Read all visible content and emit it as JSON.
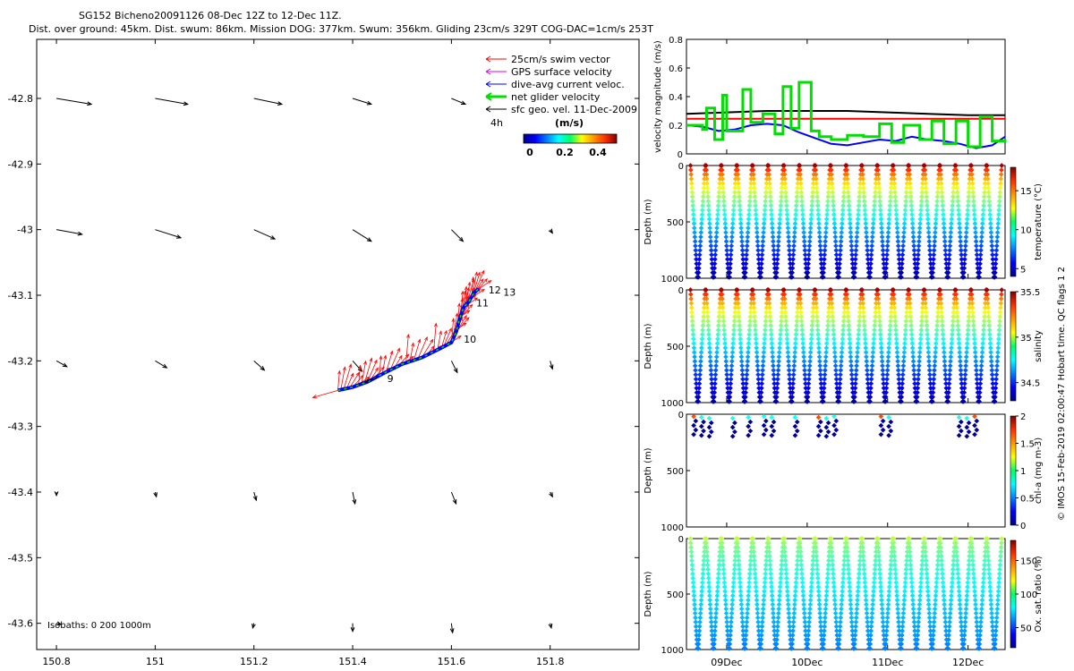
{
  "title_line1": "SG152 Bicheno20091126 08-Dec 12Z to 12-Dec 11Z.",
  "title_line2": "Dist. over ground: 45km. Dist. swum: 86km. Mission DOG: 377km. Swum: 356km. Gliding 23cm/s 329T COG-DAC=1cm/s 253T",
  "side_note": "© IMOS 15-Feb-2019 02:00:47 Hobart time. QC flags 1  2",
  "colors": {
    "swim": "#ff0000",
    "gps": "#e000e0",
    "dac": "#0000ff",
    "net": "#00e000",
    "sfc": "#000000",
    "axis": "#000000"
  },
  "legend": {
    "items": [
      {
        "label": "25cm/s swim vector",
        "color": "#ff0000"
      },
      {
        "label": "GPS surface velocity",
        "color": "#e000e0"
      },
      {
        "label": "dive-avg current veloc.",
        "color": "#0000ff"
      },
      {
        "label": "net glider velocity",
        "color": "#00e000"
      },
      {
        "label": "sfc geo. vel. 11-Dec-2009",
        "color": "#000000"
      }
    ],
    "time_label": "4h",
    "colorbar_title": "(m/s)",
    "colorbar_ticks": [
      "0",
      "0.2",
      "0.4"
    ],
    "isobaths": "Isobaths: 0   200  1000m"
  },
  "chart_data": [
    {
      "type": "scatter",
      "name": "map",
      "xlabel": "",
      "ylabel": "",
      "xlim": [
        150.76,
        151.98
      ],
      "ylim": [
        -43.64,
        -42.71
      ],
      "xticks": [
        "150.8",
        "151",
        "151.2",
        "151.4",
        "151.6",
        "151.8"
      ],
      "yticks": [
        "-42.8",
        "-42.9",
        "-43",
        "-43.1",
        "-43.2",
        "-43.3",
        "-43.4",
        "-43.5",
        "-43.6"
      ],
      "track": [
        [
          151.37,
          -43.245
        ],
        [
          151.4,
          -43.24
        ],
        [
          151.43,
          -43.232
        ],
        [
          151.46,
          -43.22
        ],
        [
          151.5,
          -43.205
        ],
        [
          151.54,
          -43.195
        ],
        [
          151.58,
          -43.18
        ],
        [
          151.6,
          -43.172
        ],
        [
          151.61,
          -43.155
        ],
        [
          151.615,
          -43.14
        ],
        [
          151.62,
          -43.128
        ],
        [
          151.625,
          -43.118
        ],
        [
          151.635,
          -43.11
        ],
        [
          151.645,
          -43.097
        ],
        [
          151.655,
          -43.09
        ]
      ],
      "day_labels": [
        {
          "text": "9",
          "lon": 151.47,
          "lat": -43.232
        },
        {
          "text": "10",
          "lon": 151.625,
          "lat": -43.172
        },
        {
          "text": "11",
          "lon": 151.65,
          "lat": -43.117
        },
        {
          "text": "12",
          "lon": 151.675,
          "lat": -43.097
        },
        {
          "text": "13",
          "lon": 151.705,
          "lat": -43.101
        }
      ],
      "sfc_vectors": [
        {
          "lon": 150.8,
          "lat": -42.8,
          "u": 0.3,
          "v": -0.05
        },
        {
          "lon": 151.0,
          "lat": -42.8,
          "u": 0.28,
          "v": -0.05
        },
        {
          "lon": 151.2,
          "lat": -42.8,
          "u": 0.24,
          "v": -0.05
        },
        {
          "lon": 151.4,
          "lat": -42.8,
          "u": 0.16,
          "v": -0.05
        },
        {
          "lon": 151.6,
          "lat": -42.8,
          "u": 0.12,
          "v": -0.05
        },
        {
          "lon": 150.8,
          "lat": -43.0,
          "u": 0.22,
          "v": -0.04
        },
        {
          "lon": 151.0,
          "lat": -43.0,
          "u": 0.22,
          "v": -0.07
        },
        {
          "lon": 151.2,
          "lat": -43.0,
          "u": 0.18,
          "v": -0.08
        },
        {
          "lon": 151.4,
          "lat": -43.0,
          "u": 0.16,
          "v": -0.1
        },
        {
          "lon": 151.6,
          "lat": -43.0,
          "u": 0.1,
          "v": -0.1
        },
        {
          "lon": 151.8,
          "lat": -43.0,
          "u": 0.02,
          "v": -0.03
        },
        {
          "lon": 150.8,
          "lat": -43.2,
          "u": 0.09,
          "v": -0.05
        },
        {
          "lon": 151.0,
          "lat": -43.2,
          "u": 0.1,
          "v": -0.06
        },
        {
          "lon": 151.2,
          "lat": -43.2,
          "u": 0.09,
          "v": -0.08
        },
        {
          "lon": 151.4,
          "lat": -43.2,
          "u": 0.08,
          "v": -0.09
        },
        {
          "lon": 151.6,
          "lat": -43.2,
          "u": 0.05,
          "v": -0.1
        },
        {
          "lon": 151.8,
          "lat": -43.2,
          "u": 0.02,
          "v": -0.07
        },
        {
          "lon": 150.8,
          "lat": -43.4,
          "u": 0.0,
          "v": -0.03
        },
        {
          "lon": 151.0,
          "lat": -43.4,
          "u": 0.01,
          "v": -0.04
        },
        {
          "lon": 151.2,
          "lat": -43.4,
          "u": 0.02,
          "v": -0.07
        },
        {
          "lon": 151.4,
          "lat": -43.4,
          "u": 0.02,
          "v": -0.1
        },
        {
          "lon": 151.6,
          "lat": -43.4,
          "u": 0.04,
          "v": -0.1
        },
        {
          "lon": 151.8,
          "lat": -43.4,
          "u": 0.02,
          "v": -0.04
        },
        {
          "lon": 150.8,
          "lat": -43.6,
          "u": 0.04,
          "v": -0.01
        },
        {
          "lon": 151.2,
          "lat": -43.6,
          "u": -0.01,
          "v": -0.04
        },
        {
          "lon": 151.4,
          "lat": -43.6,
          "u": 0.0,
          "v": -0.07
        },
        {
          "lon": 151.6,
          "lat": -43.6,
          "u": 0.01,
          "v": -0.08
        },
        {
          "lon": 151.8,
          "lat": -43.6,
          "u": 0.01,
          "v": -0.04
        }
      ]
    },
    {
      "type": "line",
      "name": "velocity",
      "ylabel": "velocity magnitude (m/s)",
      "xlim": [
        8.5,
        12.46
      ],
      "ylim": [
        0,
        0.8
      ],
      "yticks": [
        "0",
        "0.2",
        "0.4",
        "0.6",
        "0.8"
      ],
      "series": [
        {
          "name": "swim speed",
          "color": "#ff0000",
          "x": [
            8.5,
            12.46
          ],
          "y": [
            0.245,
            0.245
          ]
        },
        {
          "name": "surface geostrophic",
          "color": "#000000",
          "x": [
            8.5,
            9.0,
            9.5,
            10.0,
            10.5,
            11.0,
            11.5,
            12.0,
            12.46
          ],
          "y": [
            0.28,
            0.29,
            0.3,
            0.3,
            0.3,
            0.29,
            0.28,
            0.27,
            0.27
          ]
        },
        {
          "name": "dive-avg current",
          "color": "#0000ff",
          "x": [
            8.5,
            8.7,
            8.9,
            9.1,
            9.3,
            9.5,
            9.7,
            9.9,
            10.1,
            10.3,
            10.5,
            10.7,
            10.9,
            11.1,
            11.3,
            11.5,
            11.7,
            11.9,
            12.1,
            12.3,
            12.46
          ],
          "y": [
            0.2,
            0.19,
            0.16,
            0.17,
            0.2,
            0.21,
            0.2,
            0.15,
            0.11,
            0.07,
            0.06,
            0.08,
            0.1,
            0.09,
            0.12,
            0.1,
            0.09,
            0.07,
            0.04,
            0.06,
            0.12
          ]
        },
        {
          "name": "net glider velocity",
          "color": "#00e000",
          "x": [
            8.5,
            8.7,
            8.75,
            8.85,
            8.95,
            9.0,
            9.2,
            9.3,
            9.45,
            9.6,
            9.7,
            9.8,
            9.9,
            10.05,
            10.15,
            10.3,
            10.5,
            10.7,
            10.9,
            11.05,
            11.2,
            11.4,
            11.55,
            11.7,
            11.85,
            12.0,
            12.15,
            12.3,
            12.46
          ],
          "y": [
            0.2,
            0.17,
            0.32,
            0.1,
            0.41,
            0.16,
            0.45,
            0.22,
            0.28,
            0.14,
            0.47,
            0.18,
            0.5,
            0.16,
            0.12,
            0.1,
            0.13,
            0.12,
            0.21,
            0.08,
            0.2,
            0.1,
            0.23,
            0.07,
            0.23,
            0.05,
            0.26,
            0.09,
            0.1
          ]
        }
      ]
    },
    {
      "type": "scatter",
      "name": "temperature",
      "ylabel": "Depth (m)",
      "ylim": [
        0,
        1000
      ],
      "yticks": [
        "0",
        "500",
        "1000"
      ],
      "colorbar_label": "temperature (°C)",
      "colorbar_range": [
        4,
        18
      ],
      "colorbar_ticks": [
        "5",
        "10",
        "15"
      ],
      "profile_top": 17.5,
      "profile_bottom": 4.5
    },
    {
      "type": "scatter",
      "name": "salinity",
      "ylabel": "Depth (m)",
      "ylim": [
        0,
        1000
      ],
      "yticks": [
        "0",
        "500",
        "1000"
      ],
      "colorbar_label": "salinity",
      "colorbar_range": [
        34.3,
        35.5
      ],
      "colorbar_ticks": [
        "34.5",
        "35",
        "35.5"
      ],
      "profile_top": 35.45,
      "profile_bottom": 34.35
    },
    {
      "type": "scatter",
      "name": "chlorophyll",
      "ylabel": "Depth (m)",
      "ylim": [
        0,
        1000
      ],
      "yticks": [
        "0",
        "500",
        "1000"
      ],
      "colorbar_label": "chl-a (mg m-3)",
      "colorbar_range": [
        0,
        2
      ],
      "colorbar_ticks": [
        "0",
        "0.5",
        "1",
        "1.5",
        "2"
      ]
    },
    {
      "type": "scatter",
      "name": "oxygen",
      "ylabel": "Depth (m)",
      "ylim": [
        0,
        1000
      ],
      "yticks": [
        "0",
        "500",
        "1000"
      ],
      "colorbar_label": "Ox. sat. ratio (%)",
      "colorbar_range": [
        20,
        180
      ],
      "colorbar_ticks": [
        "50",
        "100",
        "150"
      ],
      "profile_top": 110,
      "profile_bottom": 60,
      "time_ticks": [
        "09Dec",
        "10Dec",
        "11Dec",
        "12Dec"
      ],
      "time_tick_values": [
        9.0,
        10.0,
        11.0,
        12.0
      ]
    }
  ]
}
